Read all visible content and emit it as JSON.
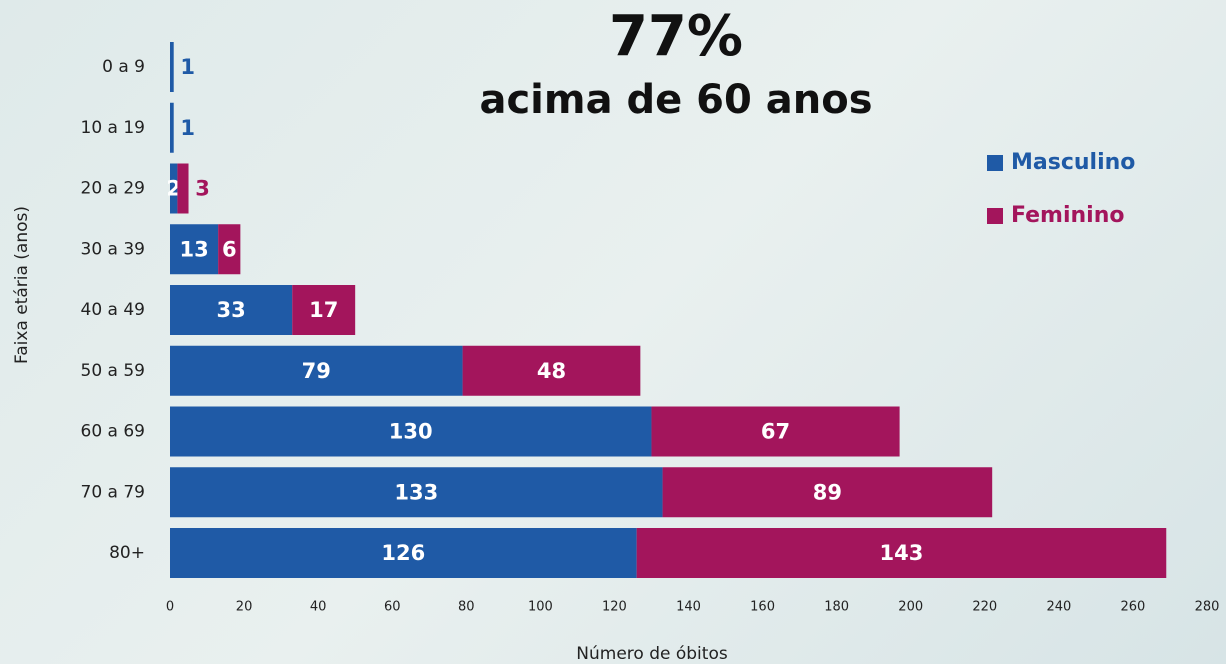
{
  "chart_data": {
    "type": "stacked-bar-horizontal",
    "title": "77%",
    "subtitle": "acima de 60 anos",
    "y_label": "Faixa etária (anos)",
    "x_label": "Número de óbitos",
    "categories": [
      "0 a 9",
      "10 a 19",
      "20 a 29",
      "30 a 39",
      "40 a 49",
      "50 a 59",
      "60 a 69",
      "70 a 79",
      "80+"
    ],
    "series": [
      {
        "name": "Masculino",
        "color": "#1f5aa6",
        "values": [
          1,
          1,
          2,
          13,
          33,
          79,
          130,
          133,
          126
        ]
      },
      {
        "name": "Feminino",
        "color": "#a3155c",
        "values": [
          null,
          null,
          3,
          6,
          17,
          48,
          67,
          89,
          143
        ]
      }
    ],
    "xlim": [
      0,
      280
    ],
    "xticks": [
      0,
      20,
      40,
      60,
      80,
      100,
      120,
      140,
      160,
      180,
      200,
      220,
      240,
      260,
      280
    ],
    "legend": "upper right"
  }
}
